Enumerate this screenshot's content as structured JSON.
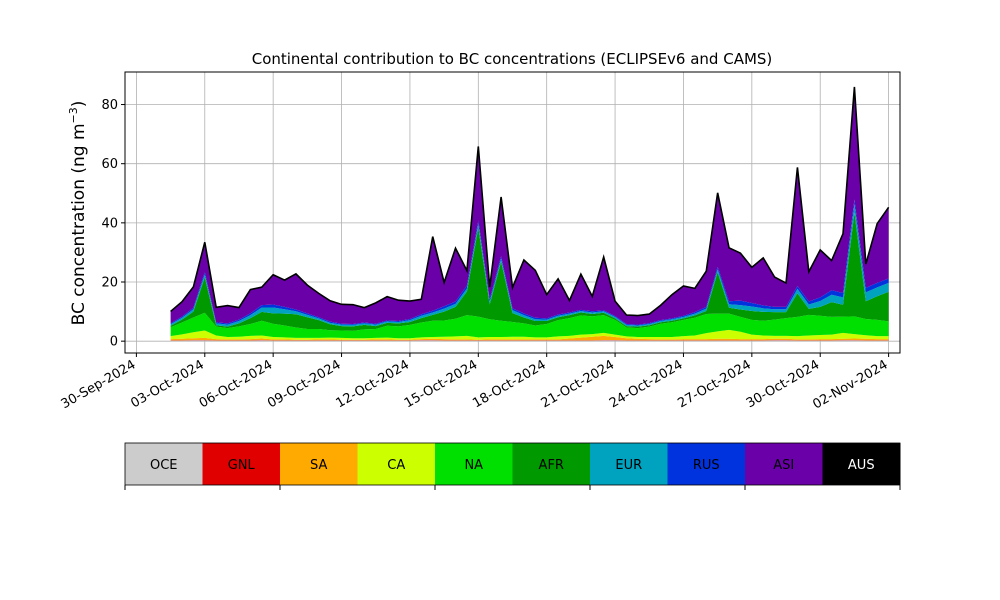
{
  "chart_data": {
    "type": "area",
    "stacked": true,
    "title": "Continental contribution to BC concentrations (ECLIPSEv6 and CAMS)",
    "ylabel": "BC concentration (ng m",
    "ylabel_sup": "−3",
    "ylabel_close": ")",
    "xlabel": "",
    "ylim": [
      -4,
      91
    ],
    "yticks": [
      0,
      20,
      40,
      60,
      80
    ],
    "xlim": [
      "2024-09-29T12:00",
      "2024-11-02T12:00"
    ],
    "xticks": [
      "30-Sep-2024",
      "03-Oct-2024",
      "06-Oct-2024",
      "09-Oct-2024",
      "12-Oct-2024",
      "15-Oct-2024",
      "18-Oct-2024",
      "21-Oct-2024",
      "24-Oct-2024",
      "27-Oct-2024",
      "30-Oct-2024",
      "02-Nov-2024"
    ],
    "grid": true,
    "x": [
      "2024-10-01T12:00",
      "2024-10-02T00:00",
      "2024-10-02T12:00",
      "2024-10-03T00:00",
      "2024-10-03T12:00",
      "2024-10-04T00:00",
      "2024-10-04T12:00",
      "2024-10-05T00:00",
      "2024-10-05T12:00",
      "2024-10-06T00:00",
      "2024-10-06T12:00",
      "2024-10-07T00:00",
      "2024-10-07T12:00",
      "2024-10-08T00:00",
      "2024-10-08T12:00",
      "2024-10-09T00:00",
      "2024-10-09T12:00",
      "2024-10-10T00:00",
      "2024-10-10T12:00",
      "2024-10-11T00:00",
      "2024-10-11T12:00",
      "2024-10-12T00:00",
      "2024-10-12T12:00",
      "2024-10-13T00:00",
      "2024-10-13T12:00",
      "2024-10-14T00:00",
      "2024-10-14T12:00",
      "2024-10-15T00:00",
      "2024-10-15T12:00",
      "2024-10-16T00:00",
      "2024-10-16T12:00",
      "2024-10-17T00:00",
      "2024-10-17T12:00",
      "2024-10-18T00:00",
      "2024-10-18T12:00",
      "2024-10-19T00:00",
      "2024-10-19T12:00",
      "2024-10-20T00:00",
      "2024-10-20T12:00",
      "2024-10-21T00:00",
      "2024-10-21T12:00",
      "2024-10-22T00:00",
      "2024-10-22T12:00",
      "2024-10-23T00:00",
      "2024-10-23T12:00",
      "2024-10-24T00:00",
      "2024-10-24T12:00",
      "2024-10-25T00:00",
      "2024-10-25T12:00",
      "2024-10-26T00:00",
      "2024-10-26T12:00",
      "2024-10-27T00:00",
      "2024-10-27T12:00",
      "2024-10-28T00:00",
      "2024-10-28T12:00",
      "2024-10-29T00:00",
      "2024-10-29T12:00",
      "2024-10-30T00:00",
      "2024-10-30T12:00",
      "2024-10-31T00:00",
      "2024-10-31T12:00",
      "2024-11-01T00:00",
      "2024-11-01T12:00",
      "2024-11-02T00:00"
    ],
    "series": [
      {
        "name": "OCE",
        "color": "#cccccc",
        "values": [
          0.2,
          0.2,
          0.3,
          0.3,
          0.2,
          0.2,
          0.2,
          0.2,
          0.3,
          0.2,
          0.2,
          0.2,
          0.2,
          0.2,
          0.2,
          0.2,
          0.2,
          0.2,
          0.2,
          0.2,
          0.2,
          0.2,
          0.3,
          0.3,
          0.2,
          0.2,
          0.2,
          0.2,
          0.2,
          0.2,
          0.2,
          0.2,
          0.2,
          0.2,
          0.2,
          0.2,
          0.2,
          0.2,
          0.3,
          0.3,
          0.2,
          0.2,
          0.2,
          0.2,
          0.2,
          0.2,
          0.2,
          0.2,
          0.2,
          0.2,
          0.2,
          0.2,
          0.2,
          0.3,
          0.3,
          0.2,
          0.2,
          0.2,
          0.2,
          0.3,
          0.3,
          0.2,
          0.2,
          0.2
        ]
      },
      {
        "name": "GNL",
        "color": "#e00000",
        "values": [
          0.1,
          0.1,
          0.1,
          0.1,
          0.1,
          0.1,
          0.1,
          0.1,
          0.1,
          0.1,
          0.1,
          0.1,
          0.1,
          0.1,
          0.1,
          0.1,
          0.1,
          0.1,
          0.1,
          0.1,
          0.1,
          0.1,
          0.1,
          0.1,
          0.1,
          0.1,
          0.1,
          0.1,
          0.1,
          0.1,
          0.1,
          0.1,
          0.1,
          0.1,
          0.1,
          0.1,
          0.1,
          0.1,
          0.1,
          0.1,
          0.1,
          0.1,
          0.1,
          0.1,
          0.1,
          0.1,
          0.1,
          0.1,
          0.1,
          0.1,
          0.1,
          0.1,
          0.1,
          0.1,
          0.1,
          0.1,
          0.1,
          0.1,
          0.1,
          0.1,
          0.1,
          0.1,
          0.1,
          0.1
        ]
      },
      {
        "name": "SA",
        "color": "#ffaa00",
        "values": [
          0.4,
          0.5,
          0.6,
          0.7,
          0.4,
          0.3,
          0.3,
          0.4,
          0.5,
          0.3,
          0.3,
          0.2,
          0.2,
          0.3,
          0.3,
          0.2,
          0.2,
          0.2,
          0.3,
          0.3,
          0.2,
          0.2,
          0.3,
          0.4,
          0.4,
          0.3,
          0.3,
          0.2,
          0.3,
          0.3,
          0.3,
          0.3,
          0.3,
          0.3,
          0.3,
          0.6,
          0.9,
          1.2,
          1.4,
          1.0,
          0.7,
          0.5,
          0.4,
          0.3,
          0.3,
          0.4,
          0.4,
          0.4,
          0.5,
          0.5,
          0.4,
          0.4,
          0.4,
          0.4,
          0.4,
          0.3,
          0.3,
          0.4,
          0.4,
          0.4,
          0.5,
          0.5,
          0.4,
          0.4
        ]
      },
      {
        "name": "CA",
        "color": "#ccff00",
        "values": [
          1.0,
          1.5,
          2.0,
          2.5,
          1.2,
          0.8,
          0.9,
          1.1,
          1.0,
          0.8,
          0.7,
          0.6,
          0.6,
          0.5,
          0.6,
          0.6,
          0.5,
          0.5,
          0.5,
          0.6,
          0.5,
          0.5,
          0.6,
          0.6,
          0.8,
          1.0,
          1.2,
          0.8,
          0.8,
          0.8,
          0.9,
          0.9,
          0.7,
          0.7,
          1.0,
          0.9,
          1.0,
          0.9,
          1.0,
          0.8,
          0.6,
          0.6,
          0.7,
          0.8,
          0.8,
          1.0,
          1.2,
          2.0,
          2.5,
          3.0,
          2.5,
          1.5,
          1.2,
          1.0,
          1.0,
          1.1,
          1.3,
          1.4,
          1.5,
          2.0,
          1.5,
          1.2,
          1.0,
          1.0
        ]
      },
      {
        "name": "NA",
        "color": "#00e000",
        "values": [
          3.0,
          4.0,
          5.0,
          6.0,
          3.0,
          3.0,
          3.5,
          4.0,
          5.0,
          4.5,
          4.0,
          3.5,
          3.0,
          3.0,
          2.5,
          2.5,
          2.5,
          3.0,
          3.0,
          4.0,
          4.0,
          4.5,
          5.0,
          5.5,
          5.5,
          6.0,
          7.0,
          7.0,
          6.0,
          5.5,
          5.0,
          4.5,
          4.0,
          4.5,
          5.5,
          6.0,
          6.5,
          6.0,
          6.0,
          5.0,
          3.0,
          3.0,
          3.5,
          4.5,
          5.0,
          5.5,
          6.0,
          6.5,
          6.0,
          5.5,
          5.0,
          5.0,
          5.0,
          5.5,
          6.0,
          6.5,
          7.0,
          6.5,
          6.0,
          5.5,
          6.0,
          5.5,
          5.5,
          5.0
        ]
      },
      {
        "name": "AFR",
        "color": "#009900",
        "values": [
          0.5,
          1.0,
          2.0,
          12.0,
          0.5,
          0.5,
          1.0,
          2.0,
          3.0,
          3.5,
          4.0,
          4.5,
          4.0,
          3.0,
          2.0,
          1.5,
          1.5,
          1.5,
          1.0,
          1.0,
          1.0,
          1.0,
          1.5,
          2.0,
          3.0,
          4.0,
          8.0,
          30.0,
          5.0,
          20.0,
          3.0,
          2.0,
          1.5,
          1.0,
          1.0,
          1.0,
          1.0,
          0.8,
          0.8,
          0.5,
          0.5,
          0.5,
          0.5,
          0.5,
          0.5,
          0.5,
          0.8,
          1.0,
          14.0,
          2.0,
          2.5,
          3.0,
          3.0,
          2.5,
          2.0,
          8.0,
          2.0,
          3.0,
          5.0,
          4.0,
          35.0,
          6.0,
          8.0,
          10.0
        ]
      },
      {
        "name": "EUR",
        "color": "#00a3bf",
        "values": [
          0.5,
          0.6,
          0.8,
          1.0,
          0.6,
          0.7,
          0.8,
          1.0,
          1.5,
          2.0,
          1.5,
          1.0,
          0.8,
          0.6,
          0.5,
          0.5,
          0.5,
          0.5,
          0.5,
          0.5,
          0.5,
          0.6,
          0.8,
          0.8,
          1.0,
          1.0,
          1.0,
          1.5,
          1.0,
          1.0,
          1.0,
          0.8,
          0.6,
          0.5,
          0.5,
          0.5,
          0.5,
          0.5,
          0.5,
          0.5,
          0.4,
          0.4,
          0.4,
          0.4,
          0.5,
          0.5,
          0.6,
          0.8,
          1.0,
          1.2,
          1.5,
          1.5,
          1.2,
          1.0,
          1.0,
          1.5,
          1.5,
          2.0,
          2.5,
          2.5,
          3.0,
          3.0,
          3.0,
          3.0
        ]
      },
      {
        "name": "RUS",
        "color": "#0033dd",
        "values": [
          0.3,
          0.4,
          0.5,
          0.8,
          0.4,
          0.4,
          0.5,
          0.6,
          0.8,
          1.0,
          0.8,
          0.6,
          0.5,
          0.4,
          0.4,
          0.3,
          0.3,
          0.3,
          0.3,
          0.3,
          0.3,
          0.4,
          0.5,
          0.6,
          0.8,
          0.8,
          1.0,
          1.0,
          0.8,
          0.8,
          0.6,
          0.6,
          0.5,
          0.4,
          0.4,
          0.4,
          0.4,
          0.4,
          0.3,
          0.3,
          0.3,
          0.3,
          0.3,
          0.3,
          0.3,
          0.4,
          0.5,
          0.6,
          0.8,
          1.0,
          1.5,
          1.2,
          1.0,
          0.8,
          0.8,
          1.0,
          1.0,
          1.2,
          1.5,
          1.5,
          1.5,
          1.5,
          1.5,
          1.5
        ]
      },
      {
        "name": "ASI",
        "color": "#6a00a8",
        "values": [
          4.0,
          5.0,
          7.0,
          10.0,
          5.0,
          6.0,
          4.0,
          8.0,
          6.0,
          10.0,
          9.0,
          12.0,
          9.5,
          8.0,
          7.0,
          6.5,
          6.5,
          5.0,
          7.0,
          8.0,
          7.0,
          6.0,
          5.0,
          25.0,
          8.0,
          18.0,
          5.0,
          25.0,
          4.0,
          20.0,
          7.0,
          18.0,
          16.0,
          8.0,
          12.0,
          4.0,
          12.0,
          5.0,
          18.0,
          5.0,
          3.0,
          3.0,
          3.0,
          5.0,
          8.0,
          10.0,
          8.0,
          12.0,
          25.0,
          18.0,
          16.0,
          12.0,
          16.0,
          10.0,
          8.0,
          40.0,
          10.0,
          16.0,
          10.0,
          20.0,
          38.0,
          8.0,
          20.0,
          24.0
        ]
      },
      {
        "name": "AUS",
        "color": "#000000",
        "values": [
          0.05,
          0.05,
          0.05,
          0.05,
          0.05,
          0.05,
          0.05,
          0.05,
          0.05,
          0.05,
          0.05,
          0.05,
          0.05,
          0.05,
          0.05,
          0.05,
          0.05,
          0.05,
          0.05,
          0.05,
          0.05,
          0.05,
          0.05,
          0.05,
          0.05,
          0.05,
          0.05,
          0.05,
          0.05,
          0.05,
          0.05,
          0.05,
          0.05,
          0.05,
          0.05,
          0.05,
          0.05,
          0.05,
          0.05,
          0.05,
          0.05,
          0.05,
          0.05,
          0.05,
          0.05,
          0.05,
          0.05,
          0.05,
          0.05,
          0.05,
          0.05,
          0.05,
          0.05,
          0.05,
          0.05,
          0.05,
          0.05,
          0.05,
          0.05,
          0.05,
          0.05,
          0.05,
          0.05,
          0.05
        ]
      }
    ],
    "legend": [
      "OCE",
      "GNL",
      "SA",
      "CA",
      "NA",
      "AFR",
      "EUR",
      "RUS",
      "ASI",
      "AUS"
    ],
    "legend_placement": "colorbar-bottom"
  }
}
